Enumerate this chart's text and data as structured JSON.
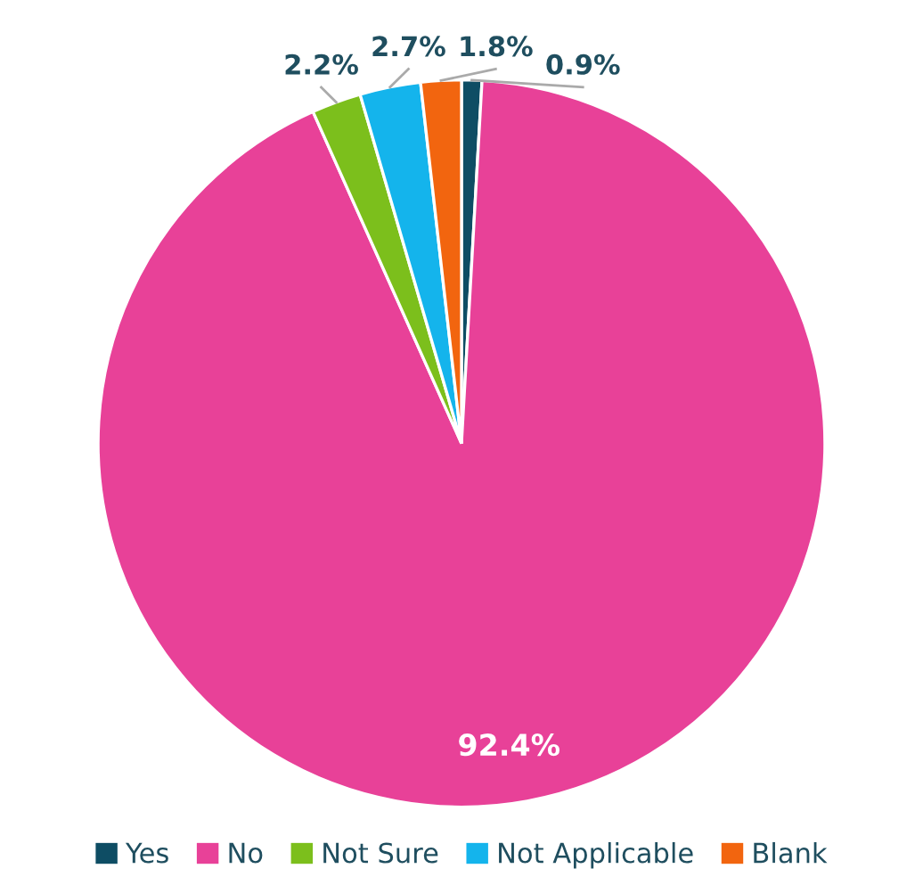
{
  "chart_data": {
    "type": "pie",
    "categories": [
      "Yes",
      "No",
      "Not Sure",
      "Not Applicable",
      "Blank"
    ],
    "values": [
      0.9,
      92.4,
      2.2,
      2.7,
      1.8
    ],
    "colors": [
      "#0e4d64",
      "#e84198",
      "#7cbf1c",
      "#14b4ec",
      "#f2650f"
    ],
    "value_labels": [
      "0.9%",
      "92.4%",
      "2.2%",
      "2.7%",
      "1.8%"
    ],
    "legend": "bottom"
  }
}
